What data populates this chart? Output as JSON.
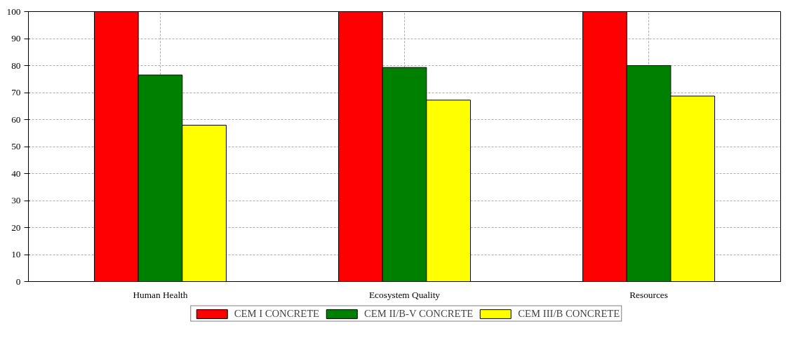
{
  "chart_data": {
    "type": "bar",
    "categories": [
      "Human Health",
      "Ecosystem Quality",
      "Resources"
    ],
    "series": [
      {
        "name": "CEM I CONCRETE",
        "color": "#ff0000",
        "values": [
          100,
          100,
          100
        ]
      },
      {
        "name": "CEM II/B-V CONCRETE",
        "color": "#008000",
        "values": [
          76.5,
          79.3,
          80.0
        ]
      },
      {
        "name": "CEM III/B CONCRETE",
        "color": "#ffff00",
        "values": [
          57.9,
          67.2,
          68.7
        ]
      }
    ],
    "ylim": [
      0,
      100
    ],
    "yticks": [
      0,
      10,
      20,
      30,
      40,
      50,
      60,
      70,
      80,
      90,
      100
    ],
    "grid": true,
    "legend": "bottom"
  }
}
